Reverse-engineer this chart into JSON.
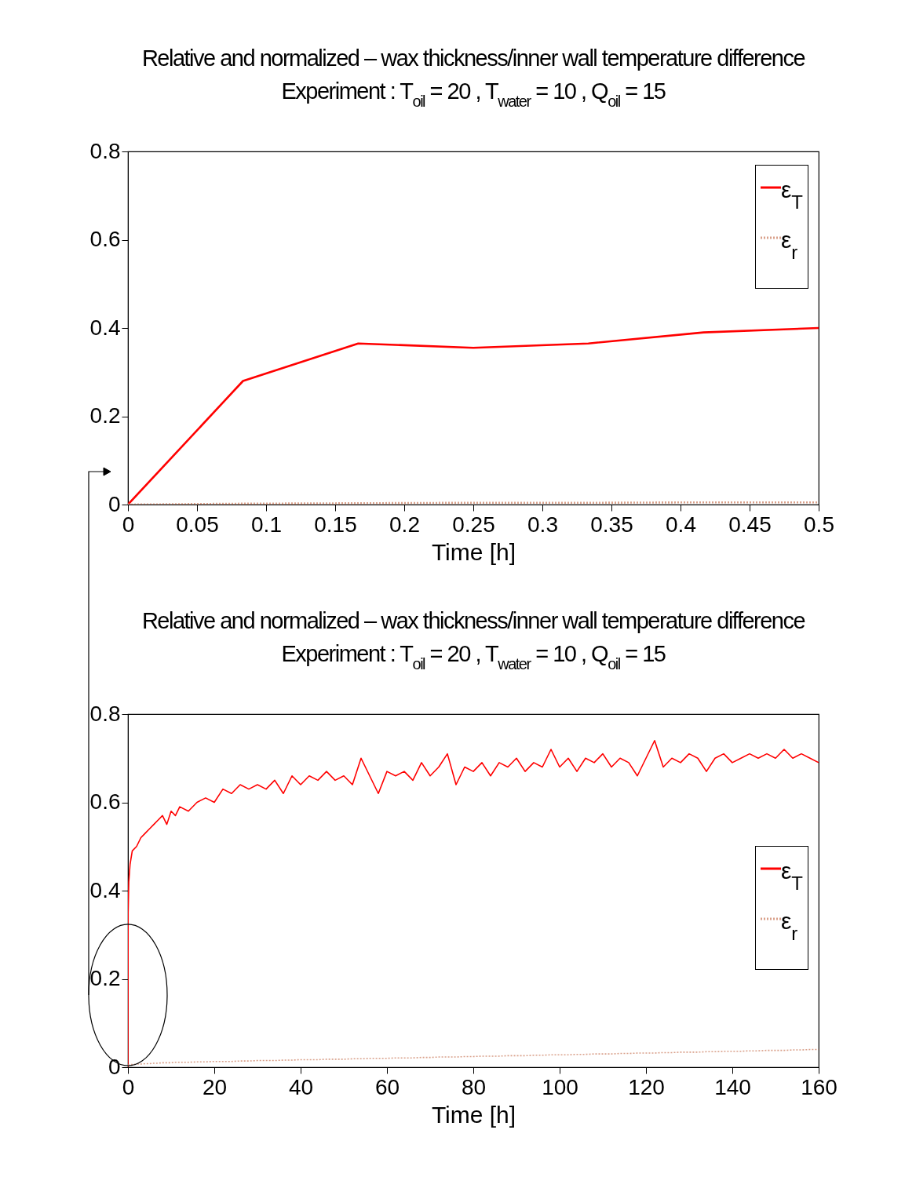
{
  "chart_data": [
    {
      "type": "line",
      "title": "Relative and normalized – wax thickness/inner wall temperature difference",
      "subtitle": "Experiment : T$_{oil}$ = 20 , T$_{water}$ = 10 , Q$_{oil}$ = 15",
      "xlabel": "Time [h]",
      "x": [
        0,
        0.0833,
        0.1667,
        0.25,
        0.3333,
        0.4167,
        0.5
      ],
      "series": [
        {
          "name": "ε$_{T}$",
          "color": "#ff0000",
          "line_style": "solid",
          "values": [
            0,
            0.28,
            0.365,
            0.355,
            0.365,
            0.39,
            0.4
          ]
        },
        {
          "name": "ε$_{r}$",
          "color": "#d9a08a",
          "line_style": "dotted",
          "values": [
            0,
            0.002,
            0.003,
            0.004,
            0.004,
            0.005,
            0.005
          ]
        }
      ],
      "xlim": [
        0,
        0.5
      ],
      "xticks": [
        0,
        0.05,
        0.1,
        0.15,
        0.2,
        0.25,
        0.3,
        0.35,
        0.4,
        0.45,
        0.5
      ],
      "ylim": [
        0,
        0.8
      ],
      "yticks": [
        0,
        0.2,
        0.4,
        0.6,
        0.8
      ],
      "legend": "top right"
    },
    {
      "type": "line",
      "title": "Relative and normalized – wax thickness/inner wall temperature difference",
      "subtitle": "Experiment : T$_{oil}$ = 20 , T$_{water}$ = 10 , Q$_{oil}$ = 15",
      "xlabel": "Time [h]",
      "x": [
        0,
        0.05,
        0.2,
        0.5,
        1,
        2,
        3,
        4,
        5,
        6,
        7,
        8,
        9,
        10,
        11,
        12,
        14,
        16,
        18,
        20,
        22,
        24,
        26,
        28,
        30,
        32,
        34,
        36,
        38,
        40,
        42,
        44,
        46,
        48,
        50,
        52,
        54,
        56,
        58,
        60,
        62,
        64,
        66,
        68,
        70,
        72,
        74,
        76,
        78,
        80,
        82,
        84,
        86,
        88,
        90,
        92,
        94,
        96,
        98,
        100,
        102,
        104,
        106,
        108,
        110,
        112,
        114,
        116,
        118,
        120,
        122,
        124,
        126,
        128,
        130,
        132,
        134,
        136,
        138,
        140,
        142,
        144,
        146,
        148,
        150,
        152,
        154,
        156,
        158,
        160
      ],
      "series": [
        {
          "name": "ε$_{T}$",
          "color": "#ff0000",
          "line_style": "solid",
          "values": [
            0,
            0.35,
            0.42,
            0.46,
            0.49,
            0.5,
            0.52,
            0.53,
            0.54,
            0.55,
            0.56,
            0.57,
            0.55,
            0.58,
            0.57,
            0.59,
            0.58,
            0.6,
            0.61,
            0.6,
            0.63,
            0.62,
            0.64,
            0.63,
            0.64,
            0.63,
            0.65,
            0.62,
            0.66,
            0.64,
            0.66,
            0.65,
            0.67,
            0.65,
            0.66,
            0.64,
            0.7,
            0.66,
            0.62,
            0.67,
            0.66,
            0.67,
            0.65,
            0.69,
            0.66,
            0.68,
            0.71,
            0.64,
            0.68,
            0.67,
            0.69,
            0.66,
            0.69,
            0.68,
            0.7,
            0.67,
            0.69,
            0.68,
            0.72,
            0.68,
            0.7,
            0.67,
            0.7,
            0.69,
            0.71,
            0.68,
            0.7,
            0.69,
            0.66,
            0.7,
            0.74,
            0.68,
            0.7,
            0.69,
            0.71,
            0.7,
            0.67,
            0.7,
            0.71,
            0.69,
            0.7,
            0.71,
            0.7,
            0.71,
            0.7,
            0.72,
            0.7,
            0.71,
            0.7,
            0.69
          ]
        },
        {
          "name": "ε$_{r}$",
          "color": "#d9a08a",
          "line_style": "dotted",
          "values": [
            0.005,
            0.005,
            0.005,
            0.006,
            0.006,
            0.007,
            0.007,
            0.008,
            0.008,
            0.009,
            0.009,
            0.01,
            0.01,
            0.01,
            0.011,
            0.011,
            0.011,
            0.012,
            0.012,
            0.013,
            0.013,
            0.013,
            0.014,
            0.014,
            0.015,
            0.015,
            0.015,
            0.016,
            0.016,
            0.017,
            0.017,
            0.017,
            0.018,
            0.018,
            0.018,
            0.019,
            0.019,
            0.02,
            0.02,
            0.02,
            0.021,
            0.021,
            0.021,
            0.022,
            0.022,
            0.023,
            0.023,
            0.023,
            0.024,
            0.024,
            0.025,
            0.025,
            0.025,
            0.026,
            0.026,
            0.026,
            0.027,
            0.027,
            0.028,
            0.028,
            0.028,
            0.029,
            0.029,
            0.03,
            0.03,
            0.03,
            0.031,
            0.031,
            0.032,
            0.032,
            0.032,
            0.033,
            0.033,
            0.034,
            0.034,
            0.034,
            0.035,
            0.035,
            0.036,
            0.036,
            0.036,
            0.037,
            0.037,
            0.038,
            0.038,
            0.038,
            0.039,
            0.039,
            0.04,
            0.04
          ]
        }
      ],
      "xlim": [
        0,
        160
      ],
      "xticks": [
        0,
        20,
        40,
        60,
        80,
        100,
        120,
        140,
        160
      ],
      "ylim": [
        0,
        0.8
      ],
      "yticks": [
        0,
        0.2,
        0.4,
        0.6,
        0.8
      ],
      "legend": "right"
    }
  ]
}
